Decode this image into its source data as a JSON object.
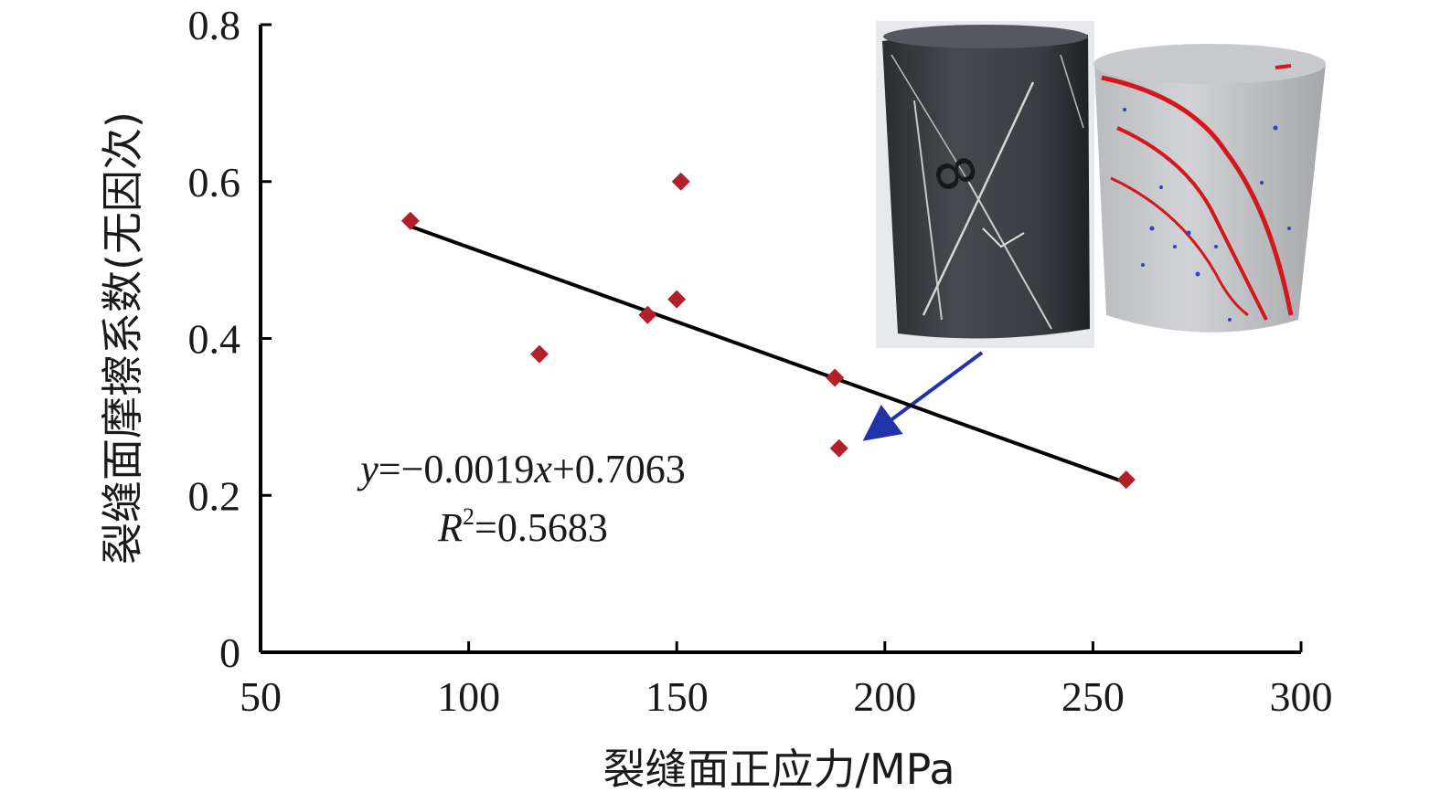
{
  "chart_data": {
    "type": "scatter",
    "x_axis": {
      "label": "裂缝面正应力/MPa",
      "range": [
        50,
        300
      ],
      "ticks": [
        50,
        100,
        150,
        200,
        250,
        300
      ],
      "tick_labels": [
        "50",
        "100",
        "150",
        "200",
        "250",
        "300"
      ]
    },
    "y_axis": {
      "label": "裂缝面摩擦系数(无因次)",
      "range": [
        0,
        0.8
      ],
      "ticks": [
        0,
        0.2,
        0.4,
        0.6,
        0.8
      ],
      "tick_labels": [
        "0",
        "0.2",
        "0.4",
        "0.6",
        "0.8"
      ]
    },
    "grid": false,
    "marker": {
      "shape": "diamond",
      "color": "#b3202a"
    },
    "points": [
      {
        "x": 86,
        "y": 0.55
      },
      {
        "x": 117,
        "y": 0.38
      },
      {
        "x": 143,
        "y": 0.43
      },
      {
        "x": 150,
        "y": 0.45
      },
      {
        "x": 151,
        "y": 0.6
      },
      {
        "x": 188,
        "y": 0.35
      },
      {
        "x": 189,
        "y": 0.26
      },
      {
        "x": 258,
        "y": 0.22
      }
    ],
    "trendline": {
      "slope": -0.0019,
      "intercept": 0.7063,
      "x_start": 86,
      "x_end": 258,
      "color": "#000000",
      "equation": {
        "y": "y",
        "rest": "=−0.0019",
        "x": "x",
        "tail": "+0.7063"
      },
      "r2": {
        "r": "R",
        "sup": "2",
        "value": "=0.5683"
      }
    },
    "annotation": {
      "arrow_color": "#2233aa",
      "arrow_target": {
        "x": 193,
        "y": 0.275
      },
      "insets": [
        {
          "name": "rock-core-photo",
          "description_icon": "rock-core-sample"
        },
        {
          "name": "ct-fracture-render",
          "description_icon": "ct-scan-cylinder"
        }
      ]
    }
  }
}
